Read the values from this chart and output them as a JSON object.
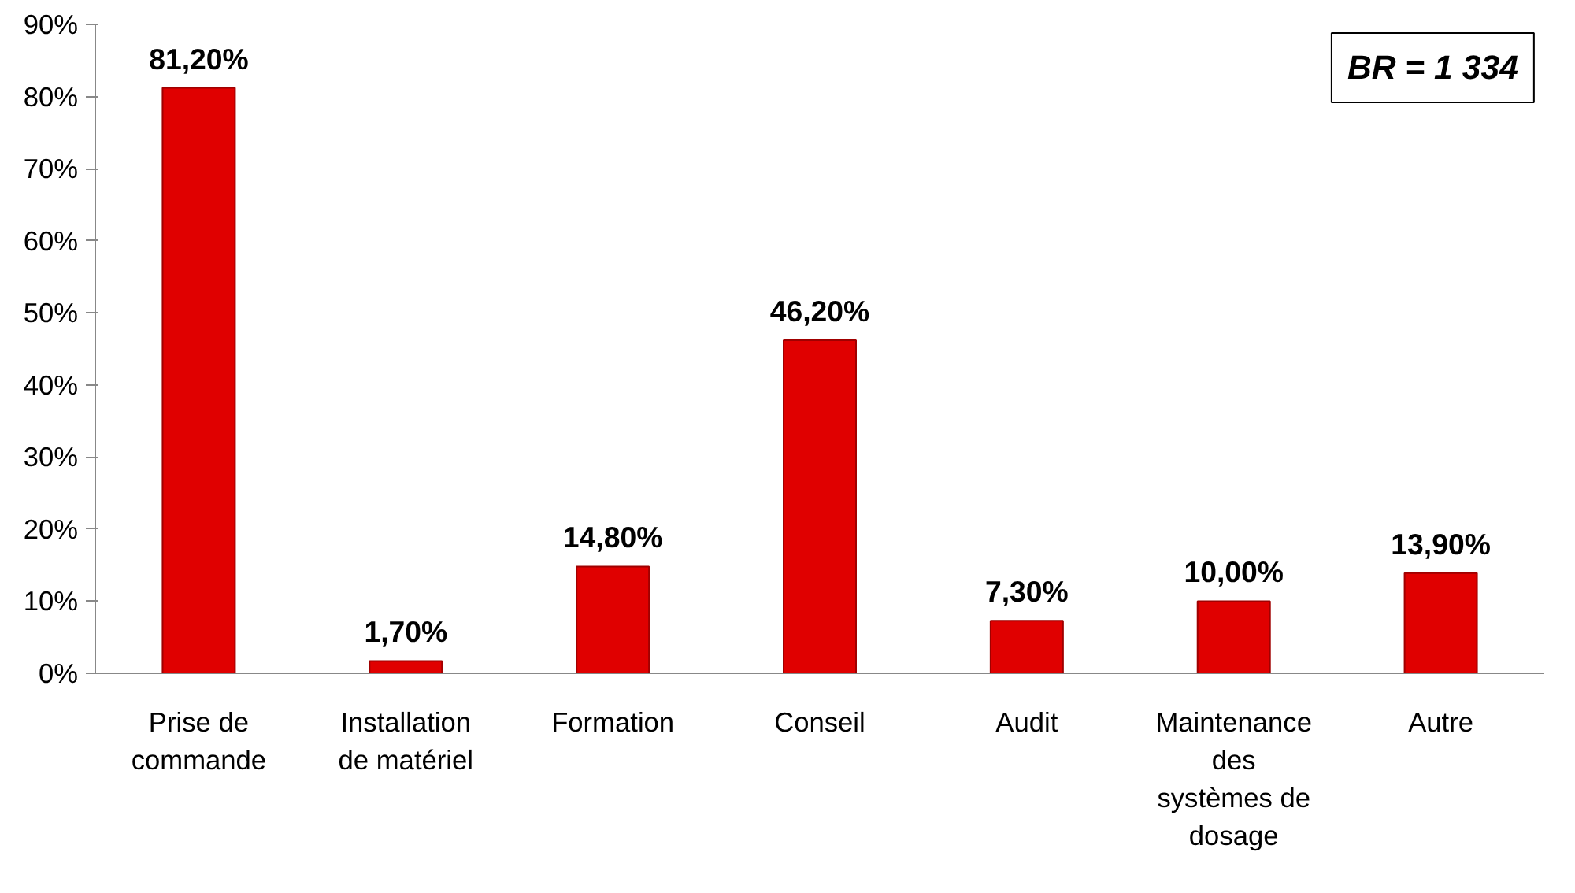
{
  "chart_data": {
    "type": "bar",
    "categories": [
      "Prise de commande",
      "Installation de matériel",
      "Formation",
      "Conseil",
      "Audit",
      "Maintenance des systèmes de dosage",
      "Autre"
    ],
    "values": [
      81.2,
      1.7,
      14.8,
      46.2,
      7.3,
      10.0,
      13.9
    ],
    "value_labels": [
      "81,20%",
      "1,70%",
      "14,80%",
      "46,20%",
      "7,30%",
      "10,00%",
      "13,90%"
    ],
    "color": "#e00000",
    "ylim": [
      0,
      90
    ],
    "yticks": [
      {
        "value": 0,
        "label": "0%"
      },
      {
        "value": 10,
        "label": "10%"
      },
      {
        "value": 20,
        "label": "20%"
      },
      {
        "value": 30,
        "label": "30%"
      },
      {
        "value": 40,
        "label": "40%"
      },
      {
        "value": 50,
        "label": "50%"
      },
      {
        "value": 60,
        "label": "60%"
      },
      {
        "value": 70,
        "label": "70%"
      },
      {
        "value": 80,
        "label": "80%"
      },
      {
        "value": 90,
        "label": "90%"
      }
    ],
    "annotations": [
      "BR = 1 334"
    ],
    "grid": false
  }
}
